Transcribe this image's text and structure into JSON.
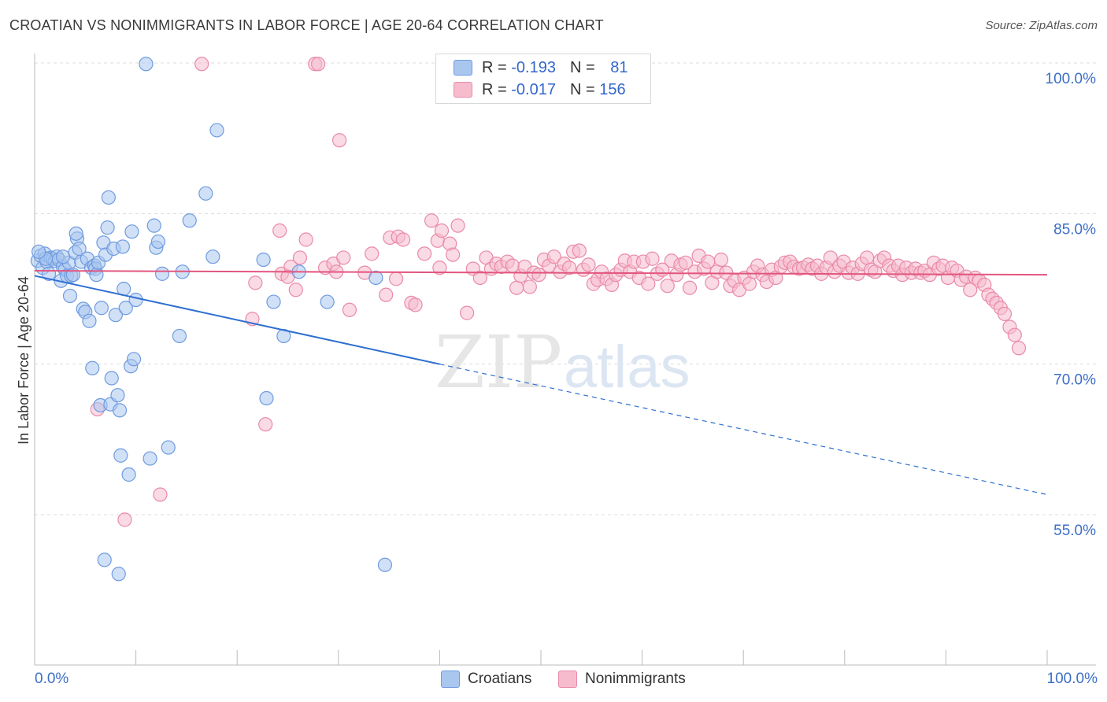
{
  "title": "CROATIAN VS NONIMMIGRANTS IN LABOR FORCE | AGE 20-64 CORRELATION CHART",
  "source": "Source: ZipAtlas.com",
  "watermark": {
    "zip": "ZIP",
    "atlas": "atlas"
  },
  "legend": {
    "rows": [
      {
        "r_label": "R = ",
        "r_value": "-0.193",
        "n_label": "N = ",
        "n_value": "81"
      },
      {
        "r_label": "R = ",
        "r_value": "-0.017",
        "n_label": "N = ",
        "n_value": "156"
      }
    ]
  },
  "bottom_legend": {
    "croatians": "Croatians",
    "nonimmigrants": "Nonimmigrants"
  },
  "x_axis": {
    "left_label": "0.0%",
    "right_label": "100.0%"
  },
  "colors": {
    "blue_fill": "#a9c6ef",
    "blue_stroke": "#6f9be0",
    "blue_line": "#2f6fd0",
    "pink_fill": "#f6bccd",
    "pink_stroke": "#e98aa8",
    "pink_line": "#e2557f",
    "axis_label": "#3d6fc6"
  },
  "chart_data": {
    "type": "scatter",
    "title": "CROATIAN VS NONIMMIGRANTS IN LABOR FORCE | AGE 20-64 CORRELATION CHART",
    "xlabel": "",
    "ylabel": "In Labor Force | Age 20-64",
    "xlim": [
      0,
      100
    ],
    "ylim": [
      40,
      101.5
    ],
    "y_ticks": [
      55,
      70,
      85,
      100
    ],
    "y_tick_labels": [
      "55.0%",
      "70.0%",
      "85.0%",
      "100.0%"
    ],
    "grid": true,
    "series": [
      {
        "name": "Croatians",
        "trend": {
          "x0": 0,
          "y0": 78.8,
          "x1": 40,
          "y1": 70.0,
          "dashed_to_x": 100,
          "dashed_to_y": 57.0
        },
        "points": [
          [
            0.3,
            80.3
          ],
          [
            0.6,
            80.8
          ],
          [
            0.8,
            79.6
          ],
          [
            1.0,
            81.0
          ],
          [
            1.2,
            80.2
          ],
          [
            1.4,
            79.0
          ],
          [
            1.6,
            80.6
          ],
          [
            1.8,
            80.5
          ],
          [
            2.0,
            80.3
          ],
          [
            2.2,
            80.7
          ],
          [
            2.4,
            80.4
          ],
          [
            2.6,
            78.3
          ],
          [
            2.8,
            79.7
          ],
          [
            3.0,
            79.4
          ],
          [
            3.2,
            78.8
          ],
          [
            3.4,
            80.1
          ],
          [
            3.5,
            76.8
          ],
          [
            3.6,
            78.8
          ],
          [
            3.8,
            78.9
          ],
          [
            4.0,
            81.1
          ],
          [
            4.2,
            82.5
          ],
          [
            4.4,
            81.5
          ],
          [
            4.6,
            80.2
          ],
          [
            4.8,
            75.5
          ],
          [
            5.0,
            75.2
          ],
          [
            5.2,
            80.5
          ],
          [
            5.4,
            74.3
          ],
          [
            5.6,
            79.6
          ],
          [
            5.7,
            69.6
          ],
          [
            5.9,
            79.8
          ],
          [
            6.0,
            79.5
          ],
          [
            6.1,
            78.9
          ],
          [
            6.3,
            80.1
          ],
          [
            6.5,
            65.9
          ],
          [
            6.6,
            75.6
          ],
          [
            6.8,
            82.1
          ],
          [
            7.0,
            80.9
          ],
          [
            7.2,
            83.6
          ],
          [
            7.3,
            86.6
          ],
          [
            7.5,
            66.0
          ],
          [
            7.6,
            68.6
          ],
          [
            7.8,
            81.5
          ],
          [
            8.0,
            74.9
          ],
          [
            8.2,
            66.9
          ],
          [
            8.4,
            65.4
          ],
          [
            8.5,
            60.9
          ],
          [
            8.7,
            81.7
          ],
          [
            8.8,
            77.5
          ],
          [
            9.0,
            75.6
          ],
          [
            9.3,
            59.0
          ],
          [
            9.5,
            69.8
          ],
          [
            9.6,
            83.2
          ],
          [
            9.8,
            70.5
          ],
          [
            10.0,
            76.4
          ],
          [
            11.0,
            99.9
          ],
          [
            11.4,
            60.6
          ],
          [
            11.8,
            83.8
          ],
          [
            12.0,
            81.6
          ],
          [
            12.2,
            82.2
          ],
          [
            12.6,
            79.0
          ],
          [
            13.2,
            61.7
          ],
          [
            14.3,
            72.8
          ],
          [
            14.6,
            79.2
          ],
          [
            15.3,
            84.3
          ],
          [
            16.9,
            87.0
          ],
          [
            17.6,
            80.7
          ],
          [
            18.0,
            93.3
          ],
          [
            22.6,
            80.4
          ],
          [
            22.9,
            66.6
          ],
          [
            23.6,
            76.2
          ],
          [
            24.6,
            72.8
          ],
          [
            26.1,
            79.2
          ],
          [
            28.9,
            76.2
          ],
          [
            33.7,
            78.6
          ],
          [
            34.6,
            50.0
          ],
          [
            6.9,
            50.5
          ],
          [
            8.3,
            49.1
          ],
          [
            2.8,
            80.7
          ],
          [
            4.1,
            83.0
          ],
          [
            1.1,
            80.5
          ],
          [
            0.4,
            81.2
          ]
        ]
      },
      {
        "name": "Nonimmigrants",
        "trend": {
          "x0": 0,
          "y0": 79.3,
          "x1": 100,
          "y1": 78.9
        },
        "points": [
          [
            16.5,
            99.9
          ],
          [
            27.7,
            99.9
          ],
          [
            28.0,
            99.9
          ],
          [
            30.1,
            92.3
          ],
          [
            6.2,
            65.5
          ],
          [
            8.9,
            54.5
          ],
          [
            12.4,
            57.0
          ],
          [
            21.5,
            74.5
          ],
          [
            21.8,
            78.1
          ],
          [
            22.8,
            64.0
          ],
          [
            24.2,
            83.3
          ],
          [
            24.4,
            79.0
          ],
          [
            25.3,
            79.7
          ],
          [
            25.8,
            77.4
          ],
          [
            26.2,
            80.6
          ],
          [
            26.8,
            82.4
          ],
          [
            28.7,
            79.6
          ],
          [
            29.5,
            80.0
          ],
          [
            29.8,
            79.2
          ],
          [
            30.5,
            80.6
          ],
          [
            31.1,
            75.4
          ],
          [
            32.6,
            79.1
          ],
          [
            33.3,
            81.0
          ],
          [
            34.7,
            76.9
          ],
          [
            35.1,
            82.6
          ],
          [
            35.7,
            78.5
          ],
          [
            35.9,
            82.7
          ],
          [
            36.4,
            82.4
          ],
          [
            37.2,
            76.1
          ],
          [
            37.6,
            75.9
          ],
          [
            38.5,
            81.0
          ],
          [
            39.2,
            84.3
          ],
          [
            39.8,
            82.3
          ],
          [
            40.0,
            79.6
          ],
          [
            40.2,
            83.3
          ],
          [
            41.0,
            82.0
          ],
          [
            41.3,
            80.9
          ],
          [
            41.8,
            83.8
          ],
          [
            42.7,
            75.1
          ],
          [
            43.3,
            79.5
          ],
          [
            44.0,
            78.6
          ],
          [
            44.6,
            80.6
          ],
          [
            45.1,
            79.5
          ],
          [
            45.6,
            80.0
          ],
          [
            46.1,
            79.7
          ],
          [
            46.7,
            80.2
          ],
          [
            47.2,
            79.8
          ],
          [
            47.6,
            77.6
          ],
          [
            48.0,
            78.8
          ],
          [
            48.4,
            79.7
          ],
          [
            48.9,
            77.7
          ],
          [
            49.3,
            79.1
          ],
          [
            49.8,
            78.9
          ],
          [
            50.3,
            80.4
          ],
          [
            50.8,
            79.8
          ],
          [
            51.3,
            80.7
          ],
          [
            51.9,
            79.2
          ],
          [
            52.3,
            80.0
          ],
          [
            52.8,
            79.6
          ],
          [
            53.2,
            81.2
          ],
          [
            53.8,
            81.3
          ],
          [
            54.2,
            79.4
          ],
          [
            54.7,
            79.9
          ],
          [
            55.2,
            78.0
          ],
          [
            55.6,
            78.4
          ],
          [
            56.0,
            79.2
          ],
          [
            56.5,
            78.5
          ],
          [
            57.0,
            77.9
          ],
          [
            57.4,
            78.9
          ],
          [
            57.9,
            79.4
          ],
          [
            58.3,
            80.3
          ],
          [
            58.8,
            79.2
          ],
          [
            59.2,
            80.2
          ],
          [
            59.7,
            78.6
          ],
          [
            60.1,
            80.2
          ],
          [
            60.6,
            78.0
          ],
          [
            61.0,
            80.5
          ],
          [
            61.5,
            79.0
          ],
          [
            62.0,
            79.4
          ],
          [
            62.5,
            77.8
          ],
          [
            62.9,
            80.3
          ],
          [
            63.4,
            78.9
          ],
          [
            63.8,
            79.9
          ],
          [
            64.3,
            80.1
          ],
          [
            64.7,
            77.6
          ],
          [
            65.2,
            79.2
          ],
          [
            65.6,
            80.8
          ],
          [
            66.1,
            79.5
          ],
          [
            66.5,
            80.2
          ],
          [
            66.9,
            78.1
          ],
          [
            67.4,
            79.2
          ],
          [
            67.8,
            80.4
          ],
          [
            68.3,
            79.1
          ],
          [
            68.7,
            77.8
          ],
          [
            69.1,
            78.3
          ],
          [
            69.6,
            77.4
          ],
          [
            70.1,
            78.6
          ],
          [
            70.6,
            78.0
          ],
          [
            71.0,
            79.2
          ],
          [
            71.4,
            79.8
          ],
          [
            71.9,
            78.9
          ],
          [
            72.3,
            78.2
          ],
          [
            72.8,
            79.4
          ],
          [
            73.2,
            78.6
          ],
          [
            73.7,
            79.7
          ],
          [
            74.1,
            80.1
          ],
          [
            74.6,
            80.2
          ],
          [
            75.0,
            79.7
          ],
          [
            75.5,
            79.5
          ],
          [
            75.9,
            79.6
          ],
          [
            76.4,
            79.9
          ],
          [
            76.8,
            79.5
          ],
          [
            77.3,
            79.8
          ],
          [
            77.7,
            79.0
          ],
          [
            78.2,
            79.6
          ],
          [
            78.6,
            80.6
          ],
          [
            79.0,
            79.2
          ],
          [
            79.5,
            79.8
          ],
          [
            79.9,
            80.2
          ],
          [
            80.4,
            79.1
          ],
          [
            80.8,
            79.6
          ],
          [
            81.3,
            79.0
          ],
          [
            81.7,
            80.0
          ],
          [
            82.2,
            80.6
          ],
          [
            82.6,
            79.4
          ],
          [
            83.0,
            79.2
          ],
          [
            83.5,
            80.3
          ],
          [
            83.9,
            80.6
          ],
          [
            84.4,
            79.8
          ],
          [
            84.8,
            79.3
          ],
          [
            85.3,
            79.8
          ],
          [
            85.7,
            78.9
          ],
          [
            86.1,
            79.6
          ],
          [
            86.6,
            79.1
          ],
          [
            87.0,
            79.5
          ],
          [
            87.5,
            79.1
          ],
          [
            87.9,
            79.3
          ],
          [
            88.4,
            78.9
          ],
          [
            88.8,
            80.1
          ],
          [
            89.3,
            79.5
          ],
          [
            89.7,
            79.8
          ],
          [
            90.2,
            78.6
          ],
          [
            90.6,
            79.6
          ],
          [
            91.1,
            79.3
          ],
          [
            91.5,
            78.4
          ],
          [
            92.0,
            78.7
          ],
          [
            92.4,
            77.4
          ],
          [
            92.9,
            78.6
          ],
          [
            93.3,
            78.3
          ],
          [
            93.8,
            77.9
          ],
          [
            94.2,
            76.9
          ],
          [
            94.6,
            76.5
          ],
          [
            95.0,
            76.1
          ],
          [
            95.4,
            75.6
          ],
          [
            95.8,
            75.0
          ],
          [
            96.3,
            73.7
          ],
          [
            96.8,
            72.9
          ],
          [
            97.2,
            71.6
          ],
          [
            25.0,
            78.7
          ]
        ]
      }
    ]
  }
}
